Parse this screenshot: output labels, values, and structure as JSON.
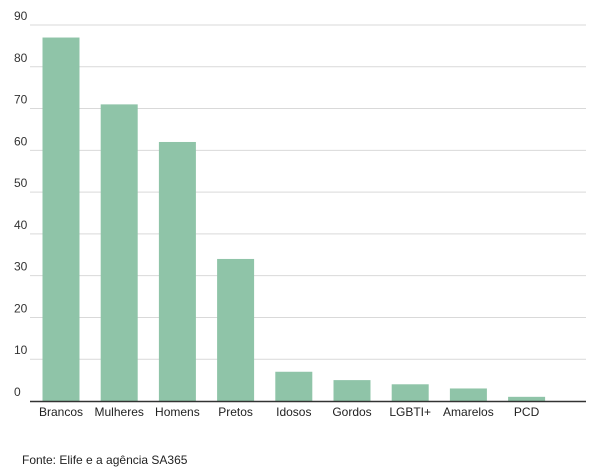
{
  "chart_data": {
    "type": "bar",
    "categories": [
      "Brancos",
      "Mulheres",
      "Homens",
      "Pretos",
      "Idosos",
      "Gordos",
      "LGBTI+",
      "Amarelos",
      "PCD"
    ],
    "values": [
      87,
      71,
      62,
      34,
      7,
      5,
      4,
      3,
      1
    ],
    "ylim": [
      0,
      90
    ],
    "yticks": [
      0,
      10,
      20,
      30,
      40,
      50,
      60,
      70,
      80,
      90
    ],
    "grid": true,
    "bar_color": "#8fc4a8",
    "gridline_color": "#d9d9d9",
    "axis_color": "#333333"
  },
  "source": "Fonte: Elife e a agência SA365"
}
